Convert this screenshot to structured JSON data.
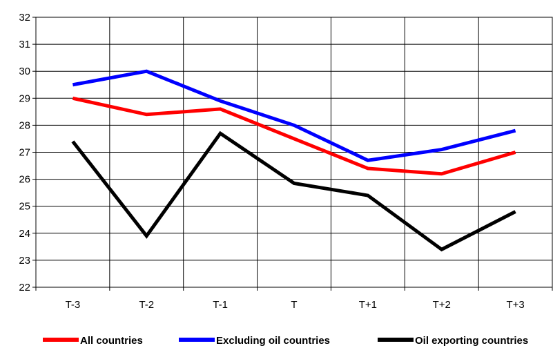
{
  "chart_data": {
    "type": "line",
    "title": "",
    "xlabel": "",
    "ylabel": "",
    "categories": [
      "T-3",
      "T-2",
      "T-1",
      "T",
      "T+1",
      "T+2",
      "T+3"
    ],
    "ylim": [
      22,
      32
    ],
    "yticks": [
      "22",
      "23",
      "24",
      "25",
      "26",
      "27",
      "28",
      "29",
      "30",
      "31",
      "32"
    ],
    "grid": true,
    "legend_position": "bottom",
    "series": [
      {
        "name": "All countries",
        "color": "#ff0000",
        "values": [
          29.0,
          28.4,
          28.6,
          27.5,
          26.4,
          26.2,
          27.0
        ]
      },
      {
        "name": "Excluding oil countries",
        "color": "#0000ff",
        "values": [
          29.5,
          30.0,
          28.9,
          28.0,
          26.7,
          27.1,
          27.8
        ]
      },
      {
        "name": "Oil exporting countries",
        "color": "#000000",
        "values": [
          27.4,
          23.9,
          27.7,
          25.85,
          25.4,
          23.4,
          24.8
        ]
      }
    ]
  }
}
